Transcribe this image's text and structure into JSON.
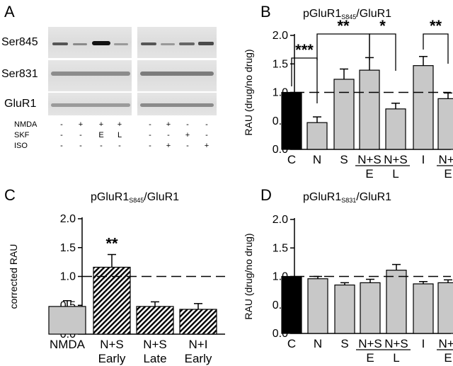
{
  "panel_a": {
    "letter": "A",
    "rows": [
      "Ser845",
      "Ser831",
      "GluR1"
    ],
    "conditions": [
      {
        "name": "NMDA",
        "left": [
          "-",
          "+",
          "+",
          "+"
        ],
        "right": [
          "-",
          "+",
          "-",
          "-"
        ]
      },
      {
        "name": "SKF",
        "left": [
          "-",
          "-",
          "E",
          "L"
        ],
        "right": [
          "-",
          "-",
          "+",
          "-"
        ]
      },
      {
        "name": "ISO",
        "left": [
          "-",
          "-",
          "-",
          "-"
        ],
        "right": [
          "-",
          "+",
          "-",
          "+"
        ]
      }
    ]
  },
  "chart_data": [
    {
      "id": "B",
      "letter": "B",
      "type": "bar",
      "title": "pGluR1",
      "title_sub": "S845",
      "title_suffix": "/GluR1",
      "ylabel": "RAU (drug/no drug)",
      "ylim": [
        0,
        2.0
      ],
      "yticks": [
        "0.0",
        "0.5",
        "1.0",
        "1.5",
        "2.0"
      ],
      "reference_line": 1.0,
      "categories": [
        "C",
        "N",
        "S",
        "N+S",
        "N+S",
        "I",
        "N+I"
      ],
      "sublabels": [
        "",
        "",
        "",
        "E",
        "L",
        "",
        "E"
      ],
      "values": [
        1.0,
        0.47,
        1.23,
        1.39,
        0.71,
        1.47,
        0.89
      ],
      "errors": [
        0,
        0.1,
        0.18,
        0.22,
        0.1,
        0.16,
        0.1
      ],
      "colors": [
        "#000000",
        "#c8c8c8",
        "#c8c8c8",
        "#c8c8c8",
        "#c8c8c8",
        "#c8c8c8",
        "#c8c8c8"
      ],
      "significance": [
        {
          "label": "***",
          "from": 0,
          "to": 1
        },
        {
          "label": "**",
          "from": 1,
          "to": 3
        },
        {
          "label": "*",
          "from": 3,
          "to": 4
        },
        {
          "label": "**",
          "from": 5,
          "to": 6
        }
      ]
    },
    {
      "id": "C",
      "letter": "C",
      "type": "bar",
      "title": "pGluR1",
      "title_sub": "S845",
      "title_suffix": "/GluR1",
      "ylabel": "corrected RAU",
      "ylim": [
        0,
        2.0
      ],
      "yticks": [
        "0.0",
        "0.5",
        "1.0",
        "1.5",
        "2.0"
      ],
      "reference_line": 1.0,
      "categories": [
        "NMDA",
        "N+S",
        "N+S",
        "N+I"
      ],
      "sublabels": [
        "",
        "Early",
        "Late",
        "Early"
      ],
      "values": [
        0.48,
        1.16,
        0.48,
        0.43
      ],
      "errors": [
        0.1,
        0.22,
        0.08,
        0.1
      ],
      "patterns": [
        "solid",
        "hatch",
        "hatch",
        "hatch"
      ],
      "star_labels": [
        "",
        "**",
        "",
        ""
      ]
    },
    {
      "id": "D",
      "letter": "D",
      "type": "bar",
      "title": "pGluR1",
      "title_sub": "S831",
      "title_suffix": "/GluR1",
      "ylabel": "RAU (drug/no drug)",
      "ylim": [
        0,
        2.0
      ],
      "yticks": [
        "0.0",
        "0.5",
        "1.0",
        "1.5",
        "2.0"
      ],
      "reference_line": 1.0,
      "categories": [
        "C",
        "N",
        "S",
        "N+S",
        "N+S",
        "I",
        "N+I"
      ],
      "sublabels": [
        "",
        "",
        "",
        "E",
        "L",
        "",
        "E"
      ],
      "values": [
        1.0,
        0.96,
        0.85,
        0.89,
        1.11,
        0.87,
        0.89
      ],
      "errors": [
        0,
        0.04,
        0.04,
        0.06,
        0.1,
        0.04,
        0.05
      ],
      "colors": [
        "#000000",
        "#c8c8c8",
        "#c8c8c8",
        "#c8c8c8",
        "#c8c8c8",
        "#c8c8c8",
        "#c8c8c8"
      ]
    }
  ]
}
